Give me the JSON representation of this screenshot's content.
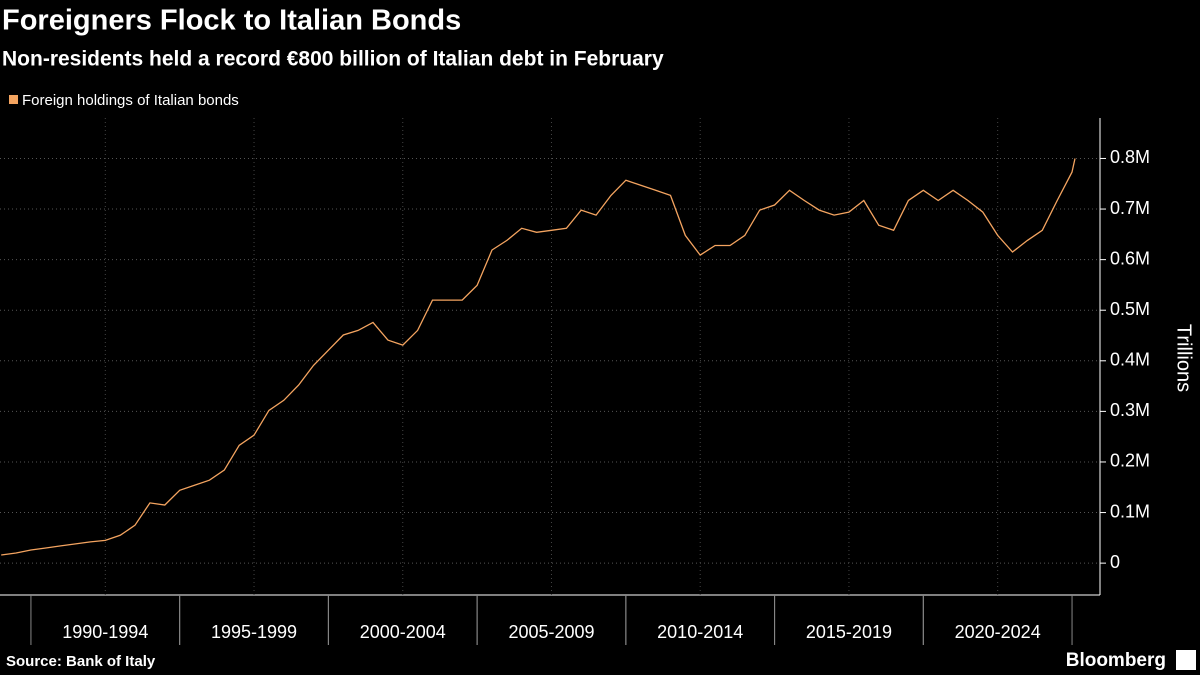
{
  "chart_data": {
    "type": "line",
    "title": "Foreigners Flock to Italian Bonds",
    "subtitle": "Non-residents held a record €800 billion of Italian debt in February",
    "y_axis_label": "Trillions",
    "source": "Source: Bank of Italy",
    "brand": "Bloomberg",
    "x": [
      1989,
      1989.5,
      1990,
      1990.5,
      1991,
      1991.5,
      1992,
      1992.5,
      1993,
      1993.5,
      1994,
      1994.5,
      1995,
      1995.5,
      1996,
      1996.5,
      1997,
      1997.5,
      1998,
      1998.5,
      1999,
      1999.5,
      2000,
      2000.5,
      2001,
      2001.5,
      2002,
      2002.5,
      2003,
      2003.5,
      2004,
      2004.5,
      2005,
      2005.5,
      2006,
      2006.5,
      2007,
      2007.5,
      2008,
      2008.5,
      2009,
      2009.5,
      2010,
      2010.5,
      2011,
      2011.5,
      2012,
      2012.5,
      2013,
      2013.5,
      2014,
      2014.5,
      2015,
      2015.5,
      2016,
      2016.5,
      2017,
      2017.5,
      2018,
      2018.5,
      2019,
      2019.5,
      2020,
      2020.5,
      2021,
      2021.5,
      2022,
      2022.5,
      2023,
      2023.5,
      2024,
      2024.5,
      2025,
      2025.1
    ],
    "series": [
      {
        "name": "Foreign holdings of Italian bonds",
        "color": "#f4a460",
        "values": [
          0.016,
          0.02,
          0.026,
          0.03,
          0.034,
          0.038,
          0.042,
          0.045,
          0.055,
          0.075,
          0.119,
          0.115,
          0.144,
          0.154,
          0.164,
          0.184,
          0.233,
          0.253,
          0.302,
          0.322,
          0.352,
          0.391,
          0.421,
          0.451,
          0.46,
          0.476,
          0.441,
          0.431,
          0.46,
          0.52,
          0.52,
          0.52,
          0.549,
          0.619,
          0.638,
          0.662,
          0.654,
          0.658,
          0.662,
          0.698,
          0.688,
          0.727,
          0.757,
          0.747,
          0.737,
          0.727,
          0.648,
          0.609,
          0.628,
          0.628,
          0.648,
          0.698,
          0.708,
          0.737,
          0.717,
          0.698,
          0.688,
          0.694,
          0.717,
          0.668,
          0.658,
          0.717,
          0.737,
          0.717,
          0.737,
          0.717,
          0.694,
          0.648,
          0.615,
          0.638,
          0.658,
          0.717,
          0.773,
          0.8
        ]
      }
    ],
    "xlim": [
      1988.96,
      2025.94
    ],
    "xticks": [
      {
        "value": 1992.5,
        "label": "1990-1994"
      },
      {
        "value": 1997.5,
        "label": "1995-1999"
      },
      {
        "value": 2002.5,
        "label": "2000-2004"
      },
      {
        "value": 2007.5,
        "label": "2005-2009"
      },
      {
        "value": 2012.5,
        "label": "2010-2014"
      },
      {
        "value": 2017.5,
        "label": "2015-2019"
      },
      {
        "value": 2022.5,
        "label": "2020-2024"
      }
    ],
    "ylim": [
      -0.063,
      0.88
    ],
    "yticks": [
      0,
      {
        "value": 0.1,
        "label": "0.1M"
      },
      {
        "value": 0.2,
        "label": "0.2M"
      },
      {
        "value": 0.3,
        "label": "0.3M"
      },
      {
        "value": 0.4,
        "label": "0.4M"
      },
      {
        "value": 0.5,
        "label": "0.5M"
      },
      {
        "value": 0.6,
        "label": "0.6M"
      },
      {
        "value": 0.7,
        "label": "0.7M"
      },
      {
        "value": 0.8,
        "label": "0.8M"
      }
    ],
    "grid": true
  }
}
